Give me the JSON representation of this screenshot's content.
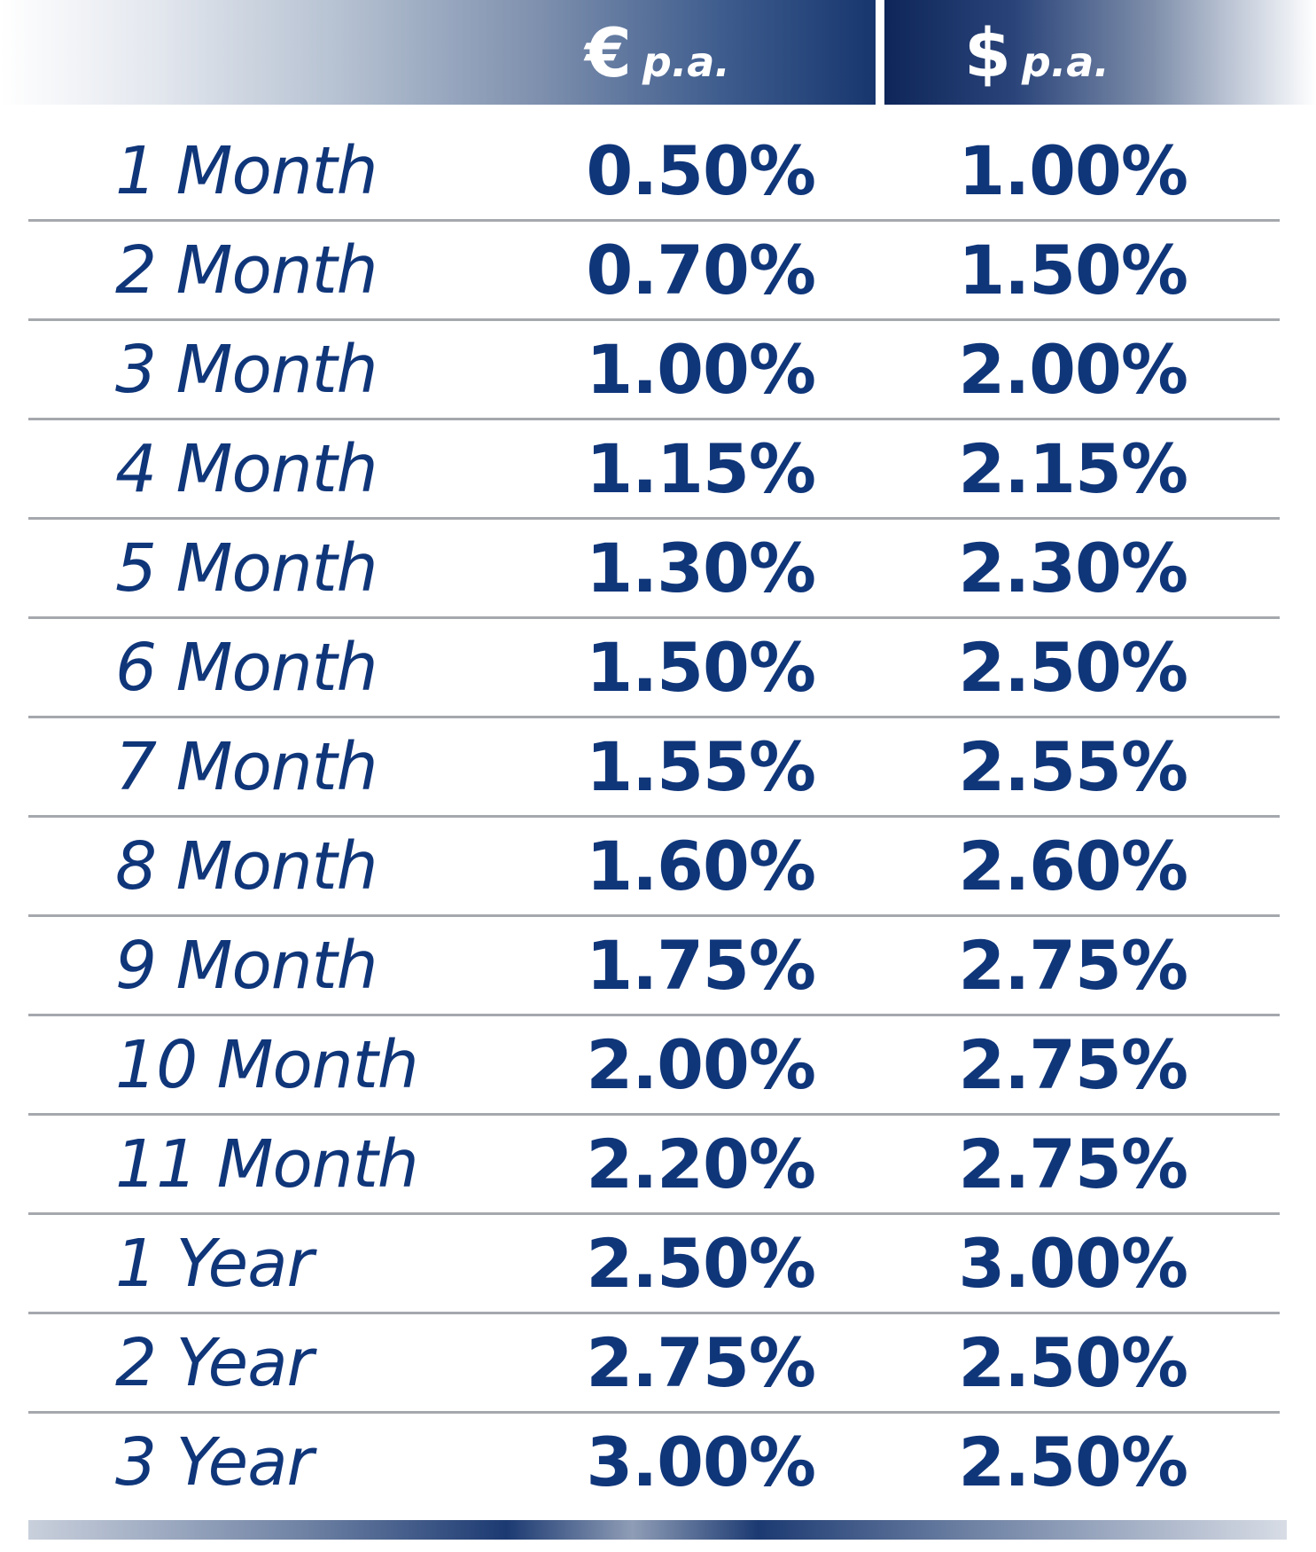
{
  "header": {
    "eur_symbol": "€",
    "eur_unit": "p.a.",
    "usd_symbol": "$",
    "usd_unit": "p.a."
  },
  "colors": {
    "text": "#10367a",
    "header_dark": "#17366e",
    "separator": "#a5a8ad"
  },
  "rows": [
    {
      "term": "1 Month",
      "eur": "0.50%",
      "usd": "1.00%"
    },
    {
      "term": "2 Month",
      "eur": "0.70%",
      "usd": "1.50%"
    },
    {
      "term": "3 Month",
      "eur": "1.00%",
      "usd": "2.00%"
    },
    {
      "term": "4 Month",
      "eur": "1.15%",
      "usd": "2.15%"
    },
    {
      "term": "5 Month",
      "eur": "1.30%",
      "usd": "2.30%"
    },
    {
      "term": "6 Month",
      "eur": "1.50%",
      "usd": "2.50%"
    },
    {
      "term": "7 Month",
      "eur": "1.55%",
      "usd": "2.55%"
    },
    {
      "term": "8 Month",
      "eur": "1.60%",
      "usd": "2.60%"
    },
    {
      "term": "9 Month",
      "eur": "1.75%",
      "usd": "2.75%"
    },
    {
      "term": "10 Month",
      "eur": "2.00%",
      "usd": "2.75%"
    },
    {
      "term": "11 Month",
      "eur": "2.20%",
      "usd": "2.75%"
    },
    {
      "term": "1 Year",
      "eur": "2.50%",
      "usd": "3.00%"
    },
    {
      "term": "2 Year",
      "eur": "2.75%",
      "usd": "2.50%"
    },
    {
      "term": "3 Year",
      "eur": "3.00%",
      "usd": "2.50%"
    }
  ]
}
